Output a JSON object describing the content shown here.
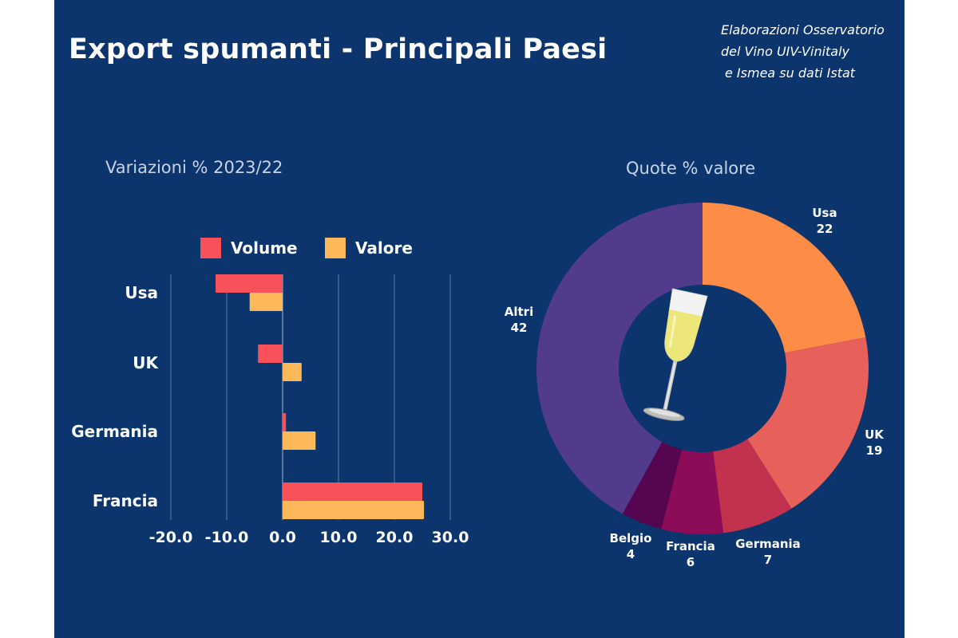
{
  "title": "Export spumanti - Principali Paesi",
  "source_lines": [
    "Elaborazioni Osservatorio",
    "del Vino UIV-Vinitaly",
    "e Ismea su dati Istat"
  ],
  "colors": {
    "background": "#0b356c",
    "volume": "#f9515a",
    "valore": "#fdb85a",
    "gridline": "#4a6c9a"
  },
  "chart_data": [
    {
      "type": "bar",
      "orientation": "horizontal",
      "title": "Variazioni % 2023/22",
      "categories": [
        "Usa",
        "UK",
        "Germania",
        "Francia"
      ],
      "series": [
        {
          "name": "Volume",
          "color": "#f9515a",
          "values": [
            -12.0,
            -4.4,
            0.6,
            25.0
          ]
        },
        {
          "name": "Valore",
          "color": "#fdb85a",
          "values": [
            -5.9,
            3.4,
            5.9,
            25.3
          ]
        }
      ],
      "xlabel": "",
      "ylabel": "",
      "xlim": [
        -20,
        30
      ],
      "xticks": [
        -20,
        -10,
        0,
        10,
        20,
        30
      ],
      "xtick_labels": [
        "-20.0",
        "-10.0",
        "0.0",
        "10.0",
        "20.0",
        "30.0"
      ],
      "grid": true,
      "legend": "top"
    },
    {
      "type": "pie",
      "donut": true,
      "title": "Quote % valore",
      "center_image": "champagne-glass",
      "slices": [
        {
          "label": "Usa",
          "value": 22,
          "color": "#fd8c47"
        },
        {
          "label": "UK",
          "value": 19,
          "color": "#e7605a"
        },
        {
          "label": "Germania",
          "value": 7,
          "color": "#c2324e"
        },
        {
          "label": "Francia",
          "value": 6,
          "color": "#8d0c57"
        },
        {
          "label": "Belgio",
          "value": 4,
          "color": "#560550"
        },
        {
          "label": "Altri",
          "value": 42,
          "color": "#523b8c"
        }
      ]
    }
  ]
}
